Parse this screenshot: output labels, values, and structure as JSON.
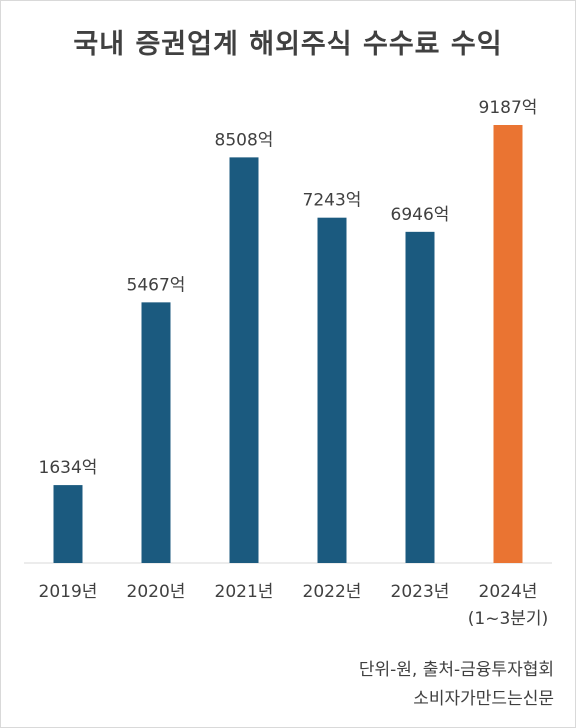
{
  "chart_data": {
    "type": "bar",
    "title": "국내 증권업계 해외주식 수수료 수익",
    "categories": [
      "2019년",
      "2020년",
      "2021년",
      "2022년",
      "2023년",
      "2024년"
    ],
    "category_sublabels": [
      "",
      "",
      "",
      "",
      "",
      "(1~3분기)"
    ],
    "values": [
      1634,
      5467,
      8508,
      7243,
      6946,
      9187
    ],
    "data_labels": [
      "1634억",
      "5467억",
      "8508억",
      "7243억",
      "6946억",
      "9187억"
    ],
    "ylim": [
      0,
      10000
    ],
    "grid": false,
    "colors": {
      "default": "#1b5a7f",
      "highlight": "#ea7432",
      "highlight_index": 5
    }
  },
  "notes": {
    "unit_source": "단위-원, 출처-금융투자협회",
    "publisher": "소비자가만드는신문"
  }
}
